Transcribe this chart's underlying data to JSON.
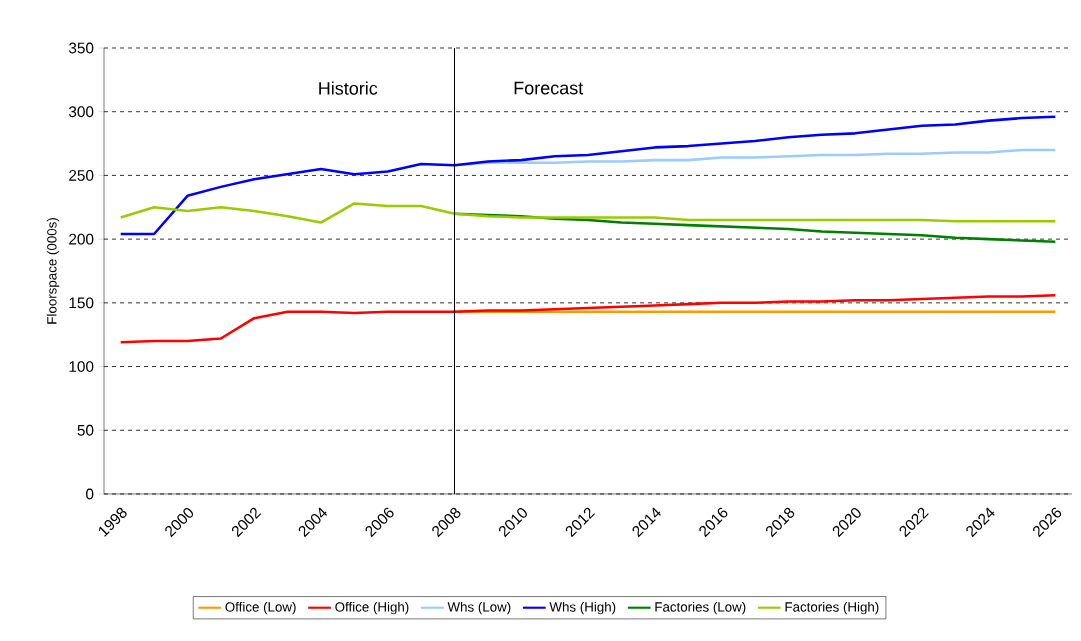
{
  "chart_data": {
    "type": "line",
    "ylabel": "Floorspace (000s)",
    "x": [
      1998,
      1999,
      2000,
      2001,
      2002,
      2003,
      2004,
      2005,
      2006,
      2007,
      2008,
      2009,
      2010,
      2011,
      2012,
      2013,
      2014,
      2015,
      2016,
      2017,
      2018,
      2019,
      2020,
      2021,
      2022,
      2023,
      2024,
      2025,
      2026
    ],
    "series": [
      {
        "name": "Office (Low)",
        "color": "#ff9900",
        "values": [
          null,
          null,
          null,
          null,
          null,
          null,
          null,
          null,
          null,
          null,
          143,
          143,
          143,
          143,
          143,
          143,
          143,
          143,
          143,
          143,
          143,
          143,
          143,
          143,
          143,
          143,
          143,
          143,
          143
        ]
      },
      {
        "name": "Office (High)",
        "color": "#ff0000",
        "values": [
          119,
          120,
          120,
          122,
          138,
          143,
          143,
          142,
          143,
          143,
          143,
          144,
          144,
          145,
          146,
          147,
          148,
          149,
          150,
          150,
          151,
          151,
          152,
          152,
          153,
          154,
          155,
          155,
          156
        ]
      },
      {
        "name": "Whs (Low)",
        "color": "#99ccff",
        "values": [
          null,
          null,
          null,
          null,
          null,
          null,
          null,
          null,
          null,
          null,
          258,
          260,
          260,
          260,
          261,
          261,
          262,
          262,
          264,
          264,
          265,
          266,
          266,
          267,
          267,
          268,
          268,
          270,
          270
        ]
      },
      {
        "name": "Whs (High)",
        "color": "#0000ff",
        "values": [
          204,
          204,
          234,
          241,
          247,
          251,
          255,
          251,
          253,
          259,
          258,
          261,
          262,
          265,
          266,
          269,
          272,
          273,
          275,
          277,
          280,
          282,
          283,
          286,
          289,
          290,
          293,
          295,
          296
        ]
      },
      {
        "name": "Factories (Low)",
        "color": "#008000",
        "values": [
          null,
          null,
          null,
          null,
          null,
          null,
          null,
          null,
          null,
          null,
          220,
          219,
          218,
          216,
          215,
          213,
          212,
          211,
          210,
          209,
          208,
          206,
          205,
          204,
          203,
          201,
          200,
          199,
          198
        ]
      },
      {
        "name": "Factories (High)",
        "color": "#99cc00",
        "values": [
          217,
          225,
          222,
          225,
          222,
          218,
          213,
          228,
          226,
          226,
          220,
          218,
          217,
          217,
          217,
          217,
          217,
          215,
          215,
          215,
          215,
          215,
          215,
          215,
          215,
          214,
          214,
          214,
          214
        ]
      }
    ],
    "xlim": [
      1997.5,
      2026.5
    ],
    "xticks": [
      1998,
      2000,
      2002,
      2004,
      2006,
      2008,
      2010,
      2012,
      2014,
      2016,
      2018,
      2020,
      2022,
      2024,
      2026
    ],
    "ylim": [
      0,
      350
    ],
    "yticks": [
      0,
      50,
      100,
      150,
      200,
      250,
      300,
      350
    ],
    "ref_lines": [
      {
        "axis": "x",
        "value": 2008,
        "color": "#000000"
      }
    ],
    "annotations": [
      "Historic",
      "Forecast"
    ],
    "grid": "y",
    "legend": "bottom",
    "marker": "none",
    "line_style": "solid"
  }
}
